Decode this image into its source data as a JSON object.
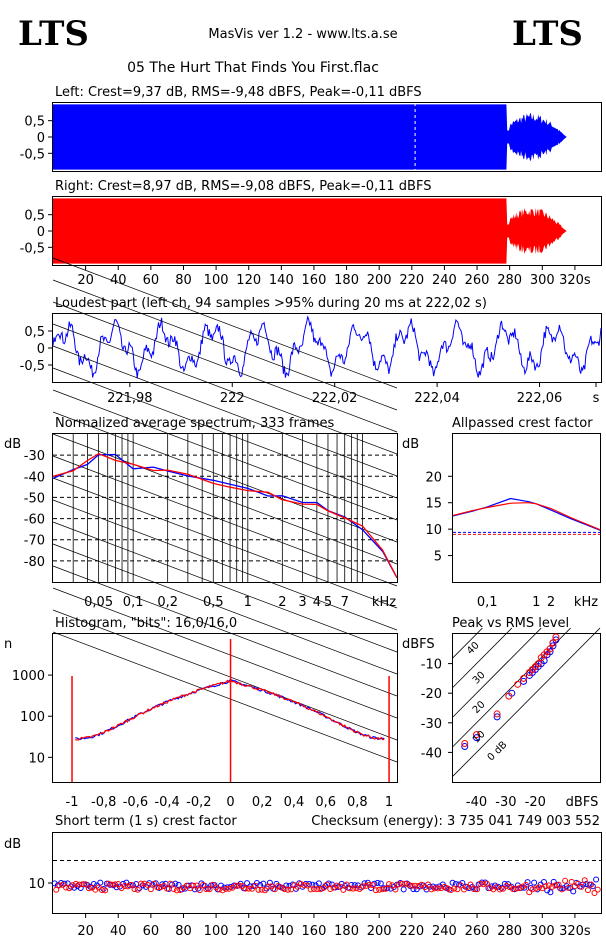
{
  "header": {
    "logo_left": "LTS",
    "logo_right": "LTS",
    "app_title": "MasVis ver 1.2 - www.lts.a.se",
    "file_title": "05 The Hurt That Finds You First.flac"
  },
  "colors": {
    "left": "#0000ff",
    "right": "#ff0000",
    "axis": "#000000",
    "grid": "#000000"
  },
  "chart_data": [
    {
      "id": "left_wave",
      "type": "area",
      "title": "Left: Crest=9,37 dB, RMS=-9,48 dBFS, Peak=-0,11 dBFS",
      "ylim": [
        -1,
        1
      ],
      "ytick_labels": [
        "0,5",
        "0",
        "-0,5"
      ],
      "marker_time_s": 222.02,
      "series": [
        {
          "name": "Left",
          "color": "#0000ff",
          "envelope_amplitude": 1.0,
          "decay_start_s": 278,
          "end_s": 330
        }
      ]
    },
    {
      "id": "right_wave",
      "type": "area",
      "title": "Right: Crest=8,97 dB, RMS=-9,08 dBFS, Peak=-0,11 dBFS",
      "ylim": [
        -1,
        1
      ],
      "ytick_labels": [
        "0,5",
        "0",
        "-0,5"
      ],
      "xlim": [
        0,
        336
      ],
      "xtick_labels": [
        "20",
        "40",
        "60",
        "80",
        "100",
        "120",
        "140",
        "160",
        "180",
        "200",
        "220",
        "240",
        "260",
        "280",
        "300",
        "320s"
      ],
      "series": [
        {
          "name": "Right",
          "color": "#ff0000",
          "envelope_amplitude": 1.0,
          "decay_start_s": 278,
          "end_s": 330
        }
      ]
    },
    {
      "id": "loudest_part",
      "type": "line",
      "title": "Loudest part (left  ch, 94 samples >95% during 20 ms at 222,02 s)",
      "xlim": [
        221.965,
        222.072
      ],
      "ylim": [
        -1,
        1
      ],
      "ytick_labels": [
        "0,5",
        "0",
        "-0,5"
      ],
      "xtick_labels": [
        "221,98",
        "222",
        "222,02",
        "222,04",
        "222,06",
        "s"
      ],
      "series": [
        {
          "name": "Left",
          "color": "#0000ff"
        }
      ]
    },
    {
      "id": "spectrum",
      "type": "line",
      "title": "Normalized average spectrum, 333 frames",
      "ylabel": "dB",
      "ytick_labels": [
        "-30",
        "-40",
        "-50",
        "-60",
        "-70",
        "-80"
      ],
      "ylim": [
        -90,
        -20
      ],
      "xtick_labels": [
        "0,05",
        "0,1",
        "0,2",
        "0,5",
        "1",
        "2",
        "3",
        "4",
        "5",
        "7",
        "kHz"
      ],
      "xlim_khz": [
        0.02,
        20
      ],
      "series": [
        {
          "name": "Left",
          "color": "#0000ff",
          "x_khz": [
            0.02,
            0.03,
            0.04,
            0.05,
            0.07,
            0.1,
            0.15,
            0.2,
            0.3,
            0.5,
            0.7,
            1,
            1.5,
            2,
            3,
            4,
            5,
            7,
            10,
            15,
            20
          ],
          "db": [
            -41,
            -37,
            -33,
            -30,
            -31,
            -35,
            -37,
            -38,
            -40,
            -43,
            -45,
            -47,
            -48,
            -50,
            -52,
            -53,
            -55,
            -59,
            -64,
            -75,
            -88
          ]
        },
        {
          "name": "Right",
          "color": "#ff0000",
          "x_khz": [
            0.02,
            0.03,
            0.04,
            0.05,
            0.07,
            0.1,
            0.15,
            0.2,
            0.3,
            0.5,
            0.7,
            1,
            1.5,
            2,
            3,
            4,
            5,
            7,
            10,
            15,
            20
          ],
          "db": [
            -40,
            -37,
            -32,
            -29,
            -31,
            -34,
            -37,
            -38,
            -40,
            -42,
            -45,
            -47,
            -48,
            -50,
            -52,
            -53,
            -55,
            -59,
            -64,
            -74,
            -88
          ]
        }
      ]
    },
    {
      "id": "allpassed_crest",
      "type": "line",
      "title": "Allpassed crest factor",
      "ylabel": "dB",
      "ytick_labels": [
        "20",
        "15",
        "10",
        "5"
      ],
      "ylim": [
        0,
        28
      ],
      "xtick_labels": [
        "0,1",
        "1",
        "2",
        "kHz"
      ],
      "series": [
        {
          "name": "Left",
          "color": "#0000ff",
          "x_khz": [
            0.02,
            0.05,
            0.1,
            0.3,
            0.7,
            1,
            2,
            5,
            20
          ],
          "db": [
            12.5,
            13.4,
            14.2,
            15.8,
            15.2,
            14.8,
            13.6,
            12.0,
            9.8
          ],
          "reference_db": 9.4
        },
        {
          "name": "Right",
          "color": "#ff0000",
          "x_khz": [
            0.02,
            0.05,
            0.1,
            0.3,
            0.7,
            1,
            2,
            5,
            20
          ],
          "db": [
            12.6,
            13.5,
            14.1,
            14.9,
            15.0,
            14.8,
            13.9,
            12.2,
            9.9
          ],
          "reference_db": 9.0
        }
      ]
    },
    {
      "id": "histogram",
      "type": "line",
      "title": "Histogram, \"bits\": 16,0/16,0",
      "ylabel": "n",
      "ytick_labels": [
        "1000",
        "100",
        "10"
      ],
      "xtick_labels": [
        "-1",
        "-0,8",
        "-0,6",
        "-0,4",
        "-0,2",
        "0",
        "0,2",
        "0,4",
        "0,6",
        "0,8",
        "1"
      ],
      "xlim": [
        -1.12,
        1.05
      ],
      "series": [
        {
          "name": "Left",
          "color": "#0000ff",
          "x": [
            -0.98,
            -0.8,
            -0.6,
            -0.4,
            -0.2,
            0,
            0.2,
            0.4,
            0.6,
            0.8,
            0.98
          ],
          "n": [
            28,
            60,
            110,
            200,
            380,
            700,
            380,
            200,
            110,
            60,
            28
          ]
        },
        {
          "name": "Right",
          "color": "#ff0000",
          "x": [
            -0.98,
            -0.8,
            -0.6,
            -0.4,
            -0.2,
            0,
            0.2,
            0.4,
            0.6,
            0.8,
            0.98
          ],
          "n": [
            32,
            65,
            120,
            210,
            390,
            720,
            390,
            210,
            120,
            65,
            32
          ]
        }
      ]
    },
    {
      "id": "peak_vs_rms",
      "type": "scatter",
      "title": "Peak vs RMS level",
      "ylabel": "dBFS",
      "ytick_labels": [
        "-10",
        "-20",
        "-30",
        "-40"
      ],
      "xtick_labels": [
        "-40",
        "-30",
        "-20",
        "dBFS"
      ],
      "diagonal_labels": [
        "40",
        "30",
        "20",
        "10",
        "0 dB"
      ],
      "series": [
        {
          "name": "Left",
          "color": "#0000ff",
          "rms": [
            -44,
            -40,
            -33,
            -28,
            -24,
            -22,
            -21,
            -20,
            -19,
            -18,
            -17,
            -16,
            -15,
            -14,
            -14,
            -13
          ],
          "peak": [
            -38,
            -35,
            -28,
            -20,
            -16,
            -14,
            -13,
            -12,
            -11,
            -10,
            -9,
            -7,
            -6,
            -4,
            -3,
            -2
          ]
        },
        {
          "name": "Right",
          "color": "#ff0000",
          "rms": [
            -44,
            -40,
            -33,
            -29,
            -26,
            -24,
            -22,
            -21,
            -20,
            -19,
            -18,
            -17,
            -16,
            -15,
            -14,
            -13
          ],
          "peak": [
            -37,
            -34,
            -27,
            -21,
            -17,
            -15,
            -13,
            -12,
            -11,
            -10,
            -8,
            -7,
            -6,
            -5,
            -3,
            -1
          ]
        }
      ]
    },
    {
      "id": "short_term_crest",
      "type": "scatter",
      "title": "Short term (1 s) crest factor",
      "checksum_label": "Checksum (energy):  3 735 041 749 003 552",
      "ylabel": "dB",
      "ytick_labels": [
        "10"
      ],
      "xlim": [
        0,
        336
      ],
      "xtick_labels": [
        "20",
        "40",
        "60",
        "80",
        "100",
        "120",
        "140",
        "160",
        "180",
        "200",
        "220",
        "240",
        "260",
        "280",
        "300",
        "320s"
      ],
      "series": [
        {
          "name": "Left",
          "color": "#0000ff",
          "mean_db": 9.4
        },
        {
          "name": "Right",
          "color": "#ff0000",
          "mean_db": 9.2
        }
      ]
    }
  ]
}
